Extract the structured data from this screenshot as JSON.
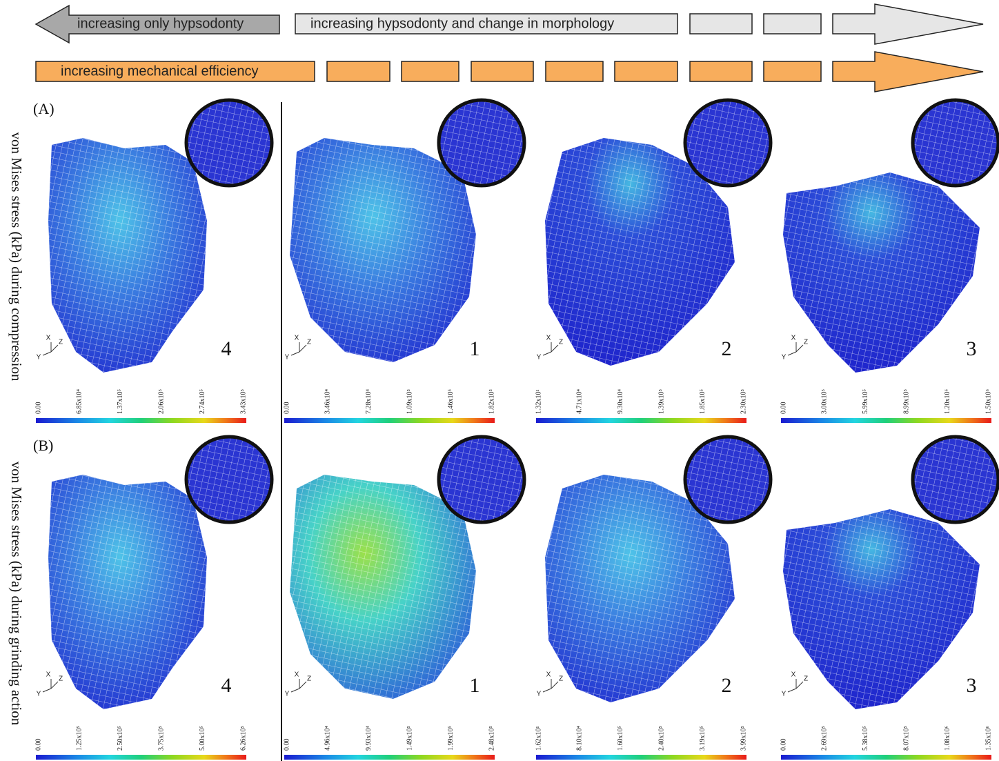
{
  "header": {
    "gray_left": "increasing only hypsodonty",
    "gray_right": "increasing hypsodonty and change in morphology",
    "orange": "increasing mechanical efficiency"
  },
  "rows": [
    {
      "label": "(A)",
      "side_label": "von Mises stress (kPa) during compression",
      "panels": [
        {
          "number": "4",
          "axes": [
            "X",
            "Y",
            "Z"
          ],
          "scale": [
            "0.00",
            "6.85x10⁴",
            "1.37x10⁵",
            "2.06x10⁵",
            "2.74x10⁵",
            "3.43x10⁵"
          ]
        },
        {
          "number": "1",
          "axes": [
            "X",
            "Y",
            "Z"
          ],
          "scale": [
            "0.00",
            "3.46x10⁴",
            "7.28x10⁴",
            "1.09x10⁵",
            "1.46x10⁵",
            "1.82x10⁵"
          ]
        },
        {
          "number": "2",
          "axes": [
            "X",
            "Y",
            "Z"
          ],
          "scale": [
            "1.32x10¹",
            "4.71x10⁴",
            "9.30x10⁴",
            "1.39x10⁵",
            "1.85x10⁵",
            "2.30x10⁵"
          ]
        },
        {
          "number": "3",
          "axes": [
            "X",
            "Y",
            "Z"
          ],
          "scale": [
            "0.00",
            "3.00x10⁵",
            "5.99x10⁵",
            "8.99x10⁵",
            "1.20x10⁶",
            "1.50x10⁶"
          ]
        }
      ]
    },
    {
      "label": "(B)",
      "side_label": "von Mises stress (kPa) during grinding action",
      "panels": [
        {
          "number": "4",
          "axes": [
            "X",
            "Y",
            "Z"
          ],
          "scale": [
            "0.00",
            "1.25x10⁵",
            "2.50x10⁵",
            "3.75x10⁵",
            "5.00x10⁵",
            "6.26x10⁵"
          ]
        },
        {
          "number": "1",
          "axes": [
            "X",
            "Y",
            "Z"
          ],
          "scale": [
            "0.00",
            "4.96x10⁴",
            "9.93x10⁴",
            "1.49x10⁵",
            "1.99x10⁵",
            "2.48x10⁵"
          ]
        },
        {
          "number": "2",
          "axes": [
            "X",
            "Y",
            "Z"
          ],
          "scale": [
            "1.62x10¹",
            "8.10x10⁴",
            "1.60x10⁵",
            "2.40x10⁵",
            "3.19x10⁵",
            "3.99x10⁵"
          ]
        },
        {
          "number": "3",
          "axes": [
            "X",
            "Y",
            "Z"
          ],
          "scale": [
            "0.00",
            "2.69x10⁵",
            "5.38x10⁵",
            "8.07x10⁵",
            "1.08x10⁶",
            "1.35x10⁶"
          ]
        }
      ]
    }
  ]
}
